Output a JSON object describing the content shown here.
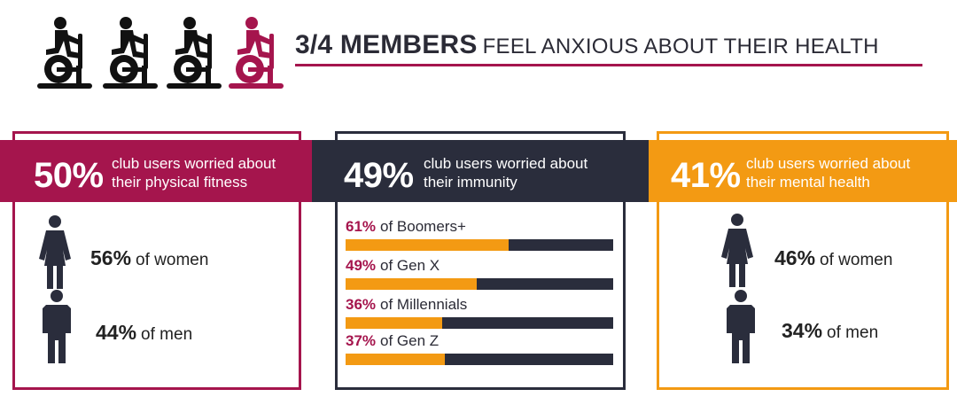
{
  "header": {
    "headline_bold": "3/4 MEMBERS",
    "headline_rest": "FEEL ANXIOUS ABOUT THEIR HEALTH",
    "icon": "exercise-bike-icon",
    "icon_colors": [
      "#111111",
      "#111111",
      "#111111",
      "#a5154d"
    ]
  },
  "colors": {
    "crimson": "#a5154d",
    "navy": "#2a2d3c",
    "orange": "#f39a13"
  },
  "cards": [
    {
      "pct": "50%",
      "desc_line1": "club users worried about",
      "desc_line2": "their physical fitness",
      "rows": [
        {
          "icon": "woman-icon",
          "value": "56%",
          "label": "of women",
          "fill": 0.56
        },
        {
          "icon": "man-icon",
          "value": "44%",
          "label": "of men",
          "fill": 0.44
        }
      ]
    },
    {
      "pct": "49%",
      "desc_line1": "club users worried about",
      "desc_line2": "their immunity",
      "generations": [
        {
          "value": "61%",
          "label": "of Boomers+",
          "fill": 0.61
        },
        {
          "value": "49%",
          "label": "of Gen X",
          "fill": 0.49
        },
        {
          "value": "36%",
          "label": "of Millennials",
          "fill": 0.36
        },
        {
          "value": "37%",
          "label": "of Gen Z",
          "fill": 0.37
        }
      ]
    },
    {
      "pct": "41%",
      "desc_line1": "club users worried about",
      "desc_line2": "their mental health",
      "rows": [
        {
          "icon": "woman-icon",
          "value": "46%",
          "label": "of women",
          "fill": 0.46
        },
        {
          "icon": "man-icon",
          "value": "34%",
          "label": "of men",
          "fill": 0.34
        }
      ]
    }
  ]
}
